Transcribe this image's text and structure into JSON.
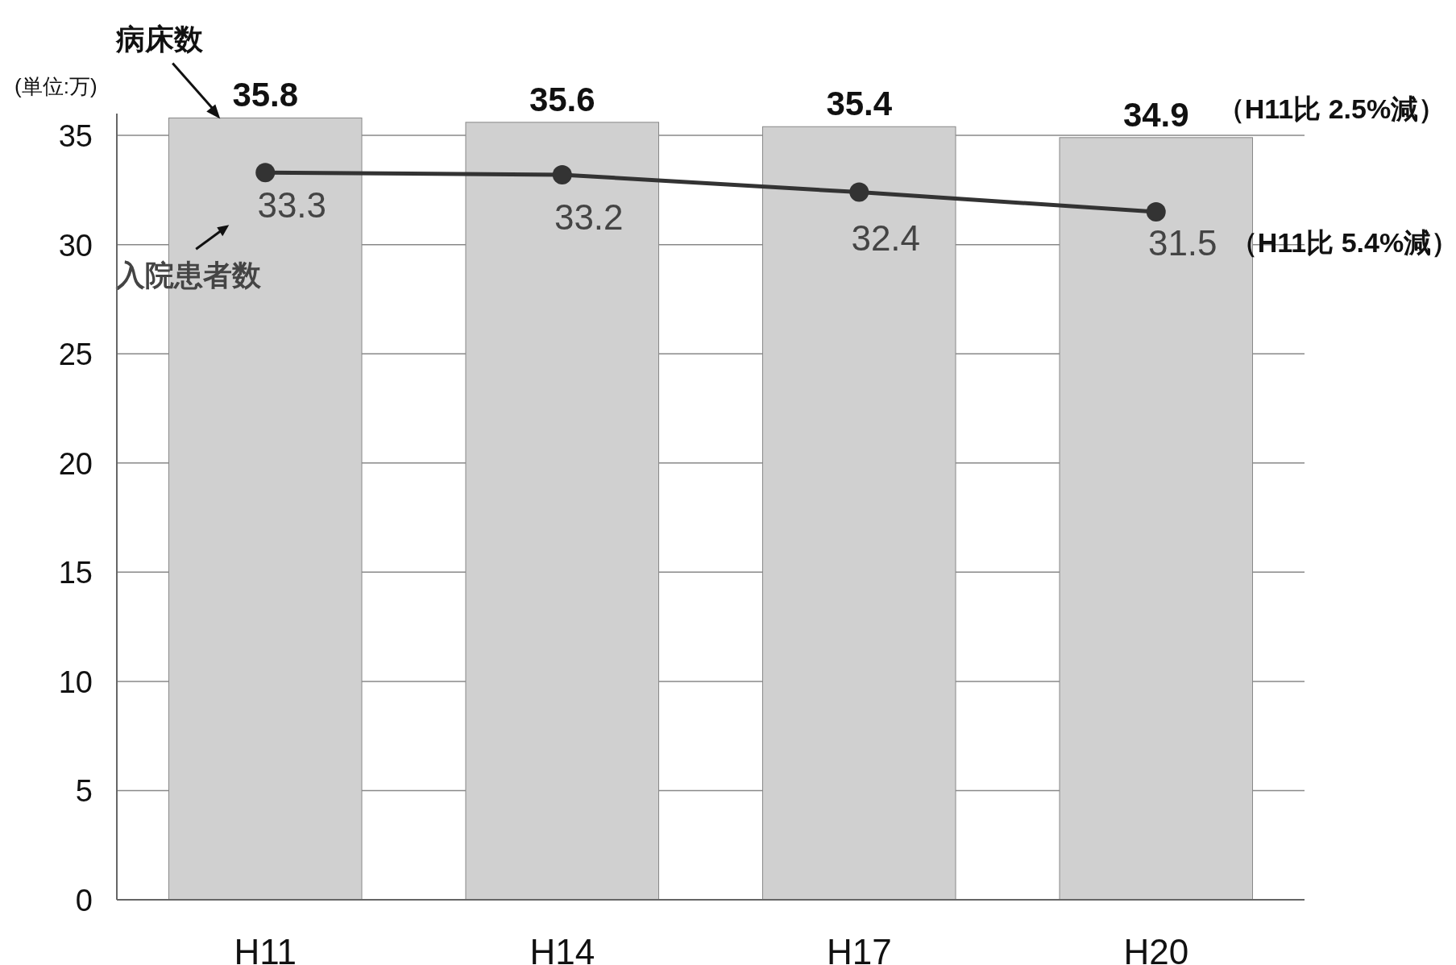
{
  "chart_data": {
    "type": "bar",
    "ylabel": "(単位:万)",
    "categories": [
      "H11",
      "H14",
      "H17",
      "H20"
    ],
    "series": [
      {
        "name": "病床数",
        "color": "#d0d0d0",
        "values": [
          35.8,
          35.6,
          35.4,
          34.9
        ]
      },
      {
        "name": "入院患者数",
        "type": "line",
        "color": "#333333",
        "values": [
          33.3,
          33.2,
          32.4,
          31.5
        ]
      }
    ],
    "ylim": [
      0,
      36
    ],
    "yticks": [
      0,
      5,
      10,
      15,
      20,
      25,
      30,
      35
    ],
    "grid": "y",
    "marker": "circle",
    "data_labels": true,
    "annotations": [
      {
        "text": "（H11比 2.5%減）",
        "x": "H20",
        "y": 34.9
      },
      {
        "text": "（H11比 5.4%減）",
        "x": "H20",
        "y": 31.5
      }
    ]
  }
}
